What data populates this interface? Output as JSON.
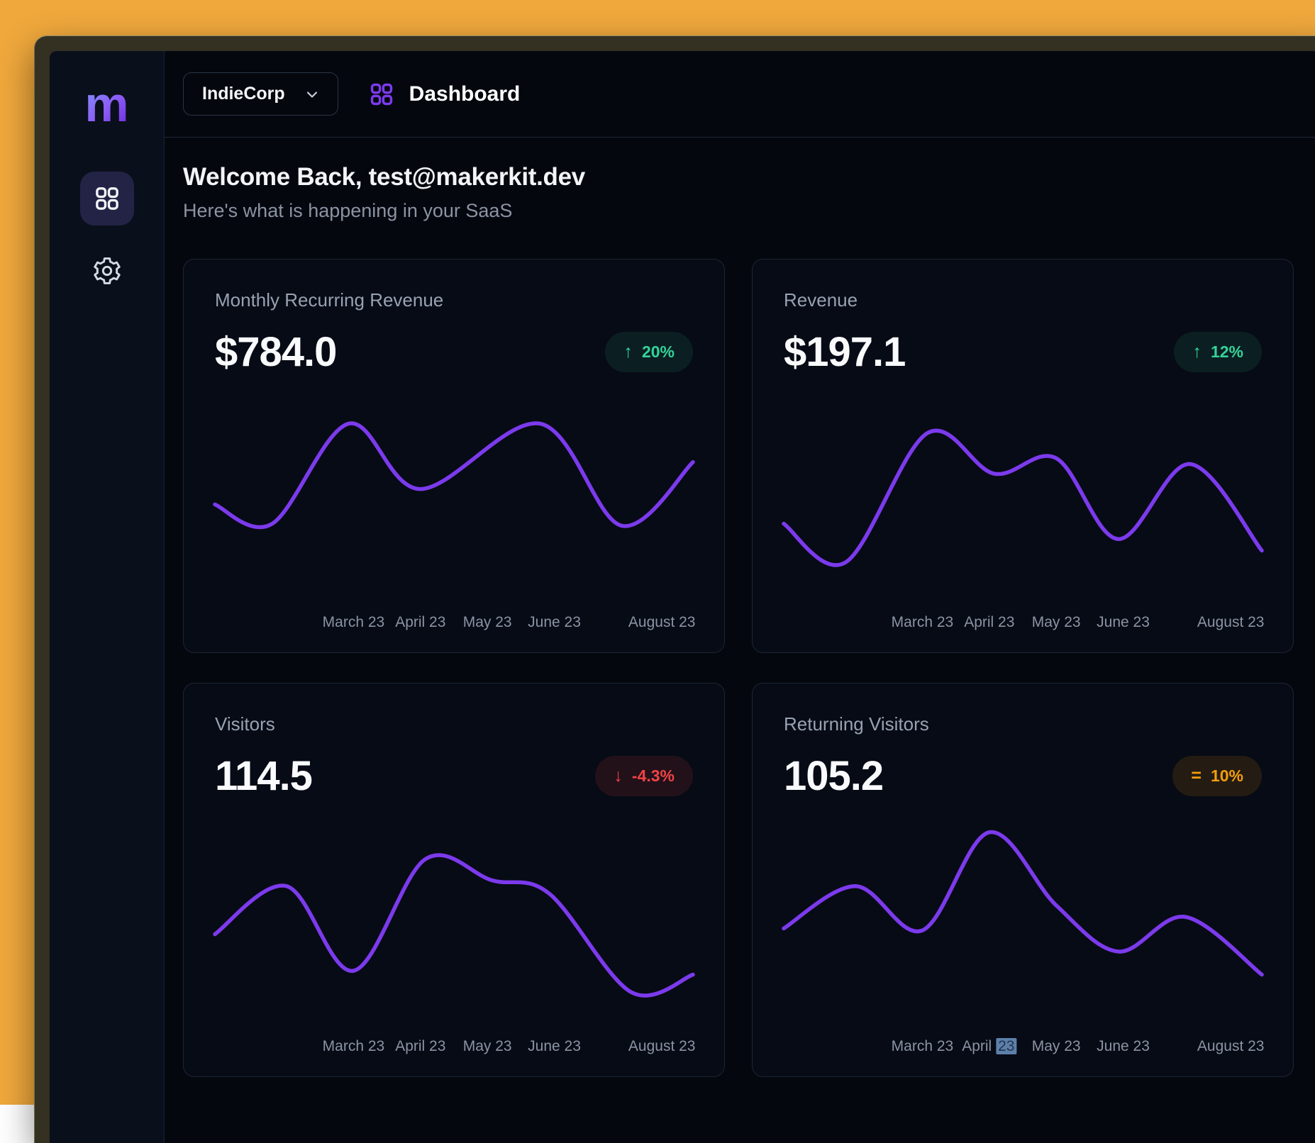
{
  "colors": {
    "accent": "#7c3aed",
    "positive": "#34d399",
    "negative": "#ef4444",
    "neutral": "#f59e0b"
  },
  "sidebar": {
    "logo": "m",
    "items": [
      {
        "label": "dashboard",
        "icon": "squares-grid-icon",
        "active": true
      },
      {
        "label": "settings",
        "icon": "gear-icon",
        "active": false
      }
    ]
  },
  "header": {
    "workspace_selector": {
      "label": "IndieCorp",
      "icon": "chevron-down-icon"
    },
    "page": {
      "icon": "squares-grid-icon",
      "title": "Dashboard"
    }
  },
  "main": {
    "heading": "Welcome Back, test@makerkit.dev",
    "subheading": "Here's what is happening in your SaaS"
  },
  "chart_data": [
    {
      "type": "line",
      "title": "Monthly Recurring Revenue",
      "value": "$784.0",
      "delta_label": "20%",
      "trend": "up",
      "line_color": "#7c3aed",
      "categories": [
        "March 23",
        "April 23",
        "May 23",
        "June 23",
        "August 23"
      ],
      "tick_positions_pct": [
        29,
        43,
        57,
        71,
        93.5
      ],
      "x_pct": [
        0,
        12,
        28,
        43,
        68,
        85,
        100
      ],
      "values_pct": [
        48,
        38,
        90,
        56,
        90,
        37,
        70
      ],
      "ylim": [
        0,
        100
      ],
      "y_units": "normalized (no visible y-axis)"
    },
    {
      "type": "line",
      "title": "Revenue",
      "value": "$197.1",
      "delta_label": "12%",
      "trend": "up",
      "line_color": "#7c3aed",
      "categories": [
        "March 23",
        "April 23",
        "May 23",
        "June 23",
        "August 23"
      ],
      "tick_positions_pct": [
        29,
        43,
        57,
        71,
        93.5
      ],
      "x_pct": [
        0,
        13,
        30,
        44,
        57,
        70,
        85,
        100
      ],
      "values_pct": [
        38,
        18,
        85,
        64,
        72,
        30,
        69,
        24
      ],
      "ylim": [
        0,
        100
      ],
      "y_units": "normalized (no visible y-axis)"
    },
    {
      "type": "line",
      "title": "Visitors",
      "value": "114.5",
      "delta_label": "-4.3%",
      "trend": "down",
      "line_color": "#7c3aed",
      "categories": [
        "March 23",
        "April 23",
        "May 23",
        "June 23",
        "August 23"
      ],
      "tick_positions_pct": [
        29,
        43,
        57,
        71,
        93.5
      ],
      "x_pct": [
        0,
        15,
        29,
        44,
        58,
        70,
        87,
        100
      ],
      "values_pct": [
        45,
        70,
        26,
        84,
        73,
        66,
        15,
        24
      ],
      "ylim": [
        0,
        100
      ],
      "y_units": "normalized (no visible y-axis)"
    },
    {
      "type": "line",
      "title": "Returning Visitors",
      "value": "105.2",
      "delta_label": "10%",
      "trend": "flat",
      "line_color": "#7c3aed",
      "categories": [
        "March 23",
        "April 23",
        "May 23",
        "June 23",
        "August 23"
      ],
      "tick_positions_pct": [
        29,
        43,
        57,
        71,
        93.5
      ],
      "x_pct": [
        0,
        15,
        29,
        43,
        57,
        70,
        84,
        100
      ],
      "values_pct": [
        48,
        70,
        47,
        98,
        60,
        36,
        54,
        24
      ],
      "ylim": [
        0,
        100
      ],
      "y_units": "normalized (no visible y-axis)",
      "selected_tick": {
        "index": 1,
        "prefix": "April ",
        "highlight_text": "23"
      }
    }
  ]
}
